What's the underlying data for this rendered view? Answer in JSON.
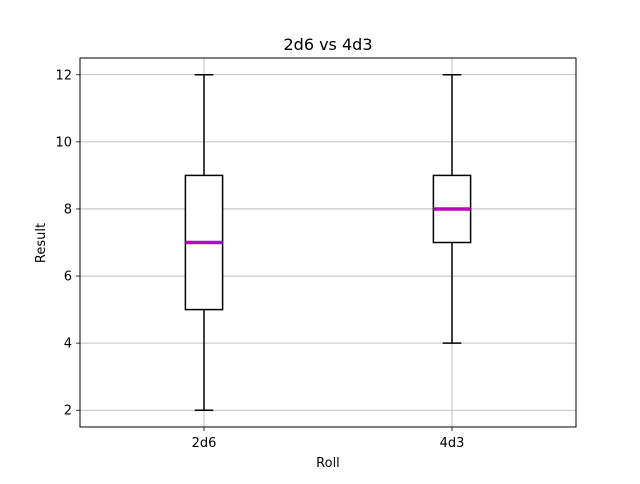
{
  "chart_data": {
    "type": "boxplot",
    "title": "2d6 vs 4d3",
    "xlabel": "Roll",
    "ylabel": "Result",
    "categories": [
      "2d6",
      "4d3"
    ],
    "boxes": [
      {
        "label": "2d6",
        "whisker_low": 2,
        "q1": 5,
        "median": 7,
        "q3": 9,
        "whisker_high": 12
      },
      {
        "label": "4d3",
        "whisker_low": 4,
        "q1": 7,
        "median": 8,
        "q3": 9,
        "whisker_high": 12
      }
    ],
    "ylim": [
      1.5,
      12.5
    ],
    "yticks": [
      2,
      4,
      6,
      8,
      10,
      12
    ],
    "ytick_labels": [
      "2",
      "4",
      "6",
      "8",
      "10",
      "12"
    ],
    "grid": true,
    "colors": {
      "median": "#bf00bf",
      "box": "#000000",
      "grid": "#b0b0b0"
    }
  }
}
